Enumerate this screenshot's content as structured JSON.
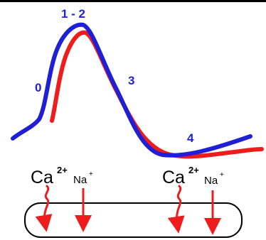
{
  "colors": {
    "line_primary": "#1f1fd6",
    "line_secondary": "#ee1c1c",
    "phase_label": "#1f1fd6",
    "arrow": "#ee1c1c",
    "text": "#000000",
    "cell_outline": "#000000",
    "background": "#ffffff"
  },
  "phase_labels": {
    "phase_0": "0",
    "phase_1_2": "1 - 2",
    "phase_3": "3",
    "phase_4": "4"
  },
  "ions": {
    "left": {
      "calcium": {
        "symbol": "Ca",
        "charge": "2+"
      },
      "sodium": {
        "symbol": "Na",
        "charge": "+"
      }
    },
    "right": {
      "calcium": {
        "symbol": "Ca",
        "charge": "2+"
      },
      "sodium": {
        "symbol": "Na",
        "charge": "+"
      }
    }
  },
  "icons": {
    "calcium_flux": "wavy-down-arrow-icon",
    "sodium_flux": "straight-down-arrow-icon"
  }
}
